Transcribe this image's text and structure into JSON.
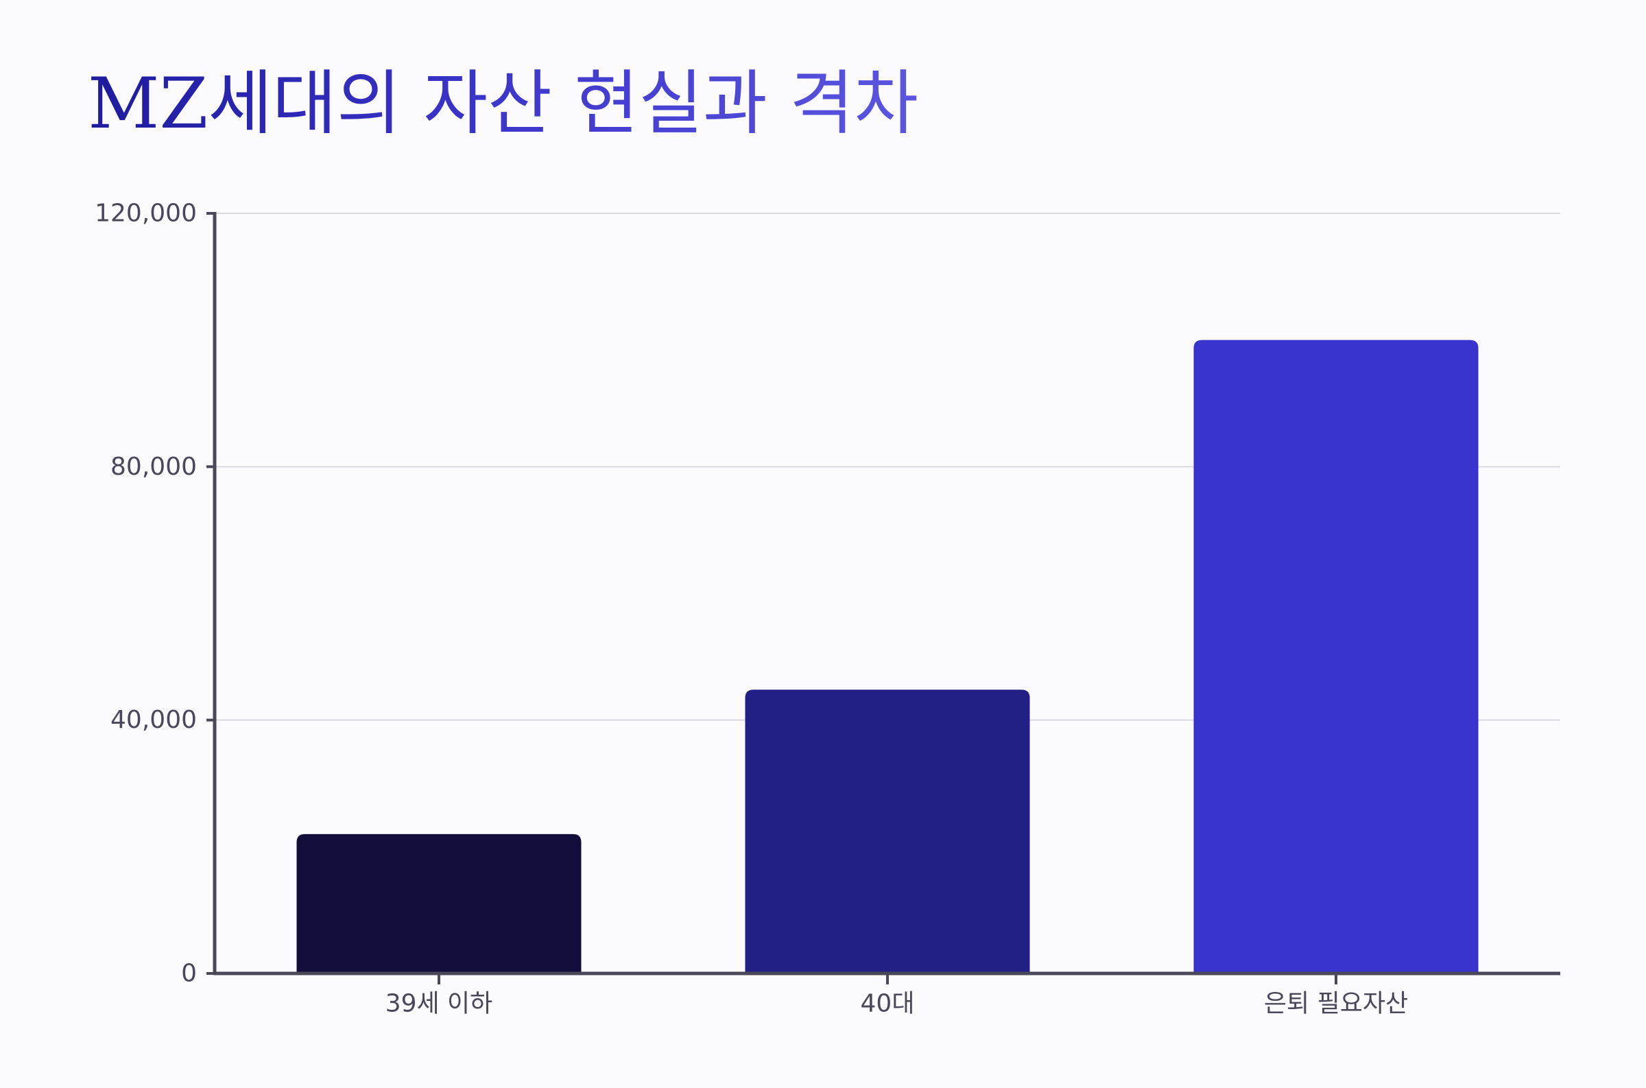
{
  "chart_data": {
    "type": "bar",
    "title": "MZ세대의 자산 현실과 격차",
    "categories": [
      "39세 이하",
      "40대",
      "은퇴 필요자산"
    ],
    "values": [
      22000,
      44800,
      100000
    ],
    "colors": [
      "#110e3b",
      "#221f85",
      "#3833cd"
    ],
    "ylim": [
      0,
      120000
    ],
    "yticks": [
      0,
      40000,
      80000,
      120000
    ],
    "ytick_labels": [
      "0",
      "40,000",
      "80,000",
      "120,000"
    ],
    "xlabel": "",
    "ylabel": "",
    "grid": true,
    "grid_color": "#d9d8e0",
    "axis_color": "#4a4858"
  }
}
